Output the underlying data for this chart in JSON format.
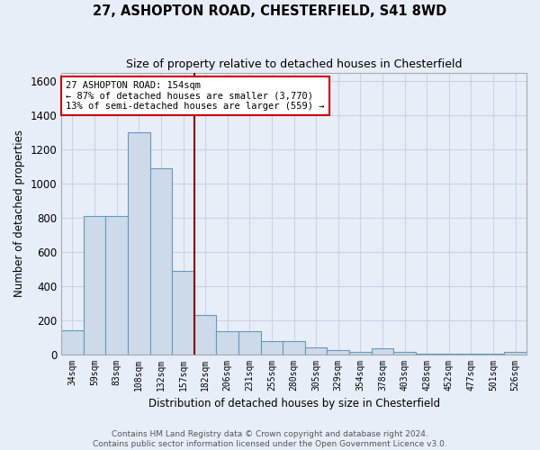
{
  "title": "27, ASHOPTON ROAD, CHESTERFIELD, S41 8WD",
  "subtitle": "Size of property relative to detached houses in Chesterfield",
  "xlabel": "Distribution of detached houses by size in Chesterfield",
  "ylabel": "Number of detached properties",
  "bar_labels": [
    "34sqm",
    "59sqm",
    "83sqm",
    "108sqm",
    "132sqm",
    "157sqm",
    "182sqm",
    "206sqm",
    "231sqm",
    "255sqm",
    "280sqm",
    "305sqm",
    "329sqm",
    "354sqm",
    "378sqm",
    "403sqm",
    "428sqm",
    "452sqm",
    "477sqm",
    "501sqm",
    "526sqm"
  ],
  "bar_heights": [
    140,
    810,
    810,
    1300,
    1090,
    490,
    230,
    135,
    135,
    75,
    75,
    40,
    25,
    15,
    35,
    15,
    5,
    5,
    5,
    5,
    15
  ],
  "bar_color": "#ccdaea",
  "bar_edge_color": "#6699bb",
  "vline_x": 5.5,
  "vline_color": "#8b0000",
  "annotation_text": "27 ASHOPTON ROAD: 154sqm\n← 87% of detached houses are smaller (3,770)\n13% of semi-detached houses are larger (559) →",
  "annotation_box_color": "#ffffff",
  "annotation_box_edge_color": "#cc0000",
  "ylim": [
    0,
    1650
  ],
  "yticks": [
    0,
    200,
    400,
    600,
    800,
    1000,
    1200,
    1400,
    1600
  ],
  "background_color": "#e8eef8",
  "grid_color": "#c8d4e8",
  "footer": "Contains HM Land Registry data © Crown copyright and database right 2024.\nContains public sector information licensed under the Open Government Licence v3.0."
}
